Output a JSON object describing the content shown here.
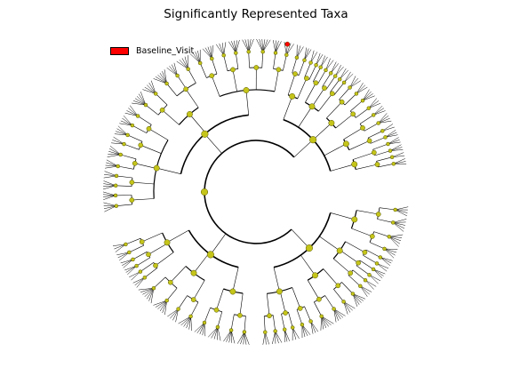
{
  "title": "Significantly Represented Taxa",
  "legend": {
    "label": "Baseline_Visit",
    "color": "#ff0000"
  },
  "colors": {
    "node": "#c4c41a",
    "highlight": "#ff0000",
    "line": "#000000"
  }
}
